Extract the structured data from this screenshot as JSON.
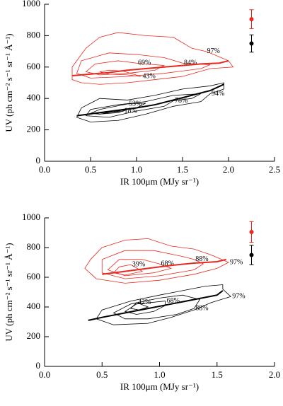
{
  "chart_data": [
    {
      "type": "contour",
      "xlabel": "IR 100μm (MJy sr⁻¹)",
      "ylabel": "UV (ph cm⁻² s⁻¹ sr⁻¹ Å⁻¹)",
      "xlim": [
        0,
        2.5
      ],
      "ylim": [
        0,
        1000
      ],
      "xticks": [
        {
          "value": 0,
          "label": "0.0"
        },
        0.5,
        {
          "value": 1,
          "label": "1.0"
        },
        1.5,
        {
          "value": 2,
          "label": "2.0"
        },
        2.5
      ],
      "yticks": [
        0,
        200,
        400,
        600,
        800,
        1000
      ],
      "groups": [
        {
          "color": "#e8281e",
          "levels": [
            {
              "label": "97%",
              "x": [
                1.75,
                1.6,
                1.4,
                1.1,
                0.8,
                0.6,
                0.45,
                0.3,
                0.3,
                0.4,
                0.6,
                0.9,
                1.2,
                1.5,
                1.8,
                2.05,
                2.0,
                1.8
              ],
              "y": [
                700,
                720,
                790,
                800,
                820,
                790,
                720,
                600,
                520,
                500,
                490,
                500,
                520,
                540,
                590,
                600,
                640,
                690
              ]
            },
            {
              "label": "84%",
              "x": [
                1.5,
                1.3,
                1.0,
                0.7,
                0.4,
                0.35,
                0.5,
                0.9,
                1.3,
                1.7,
                1.8
              ],
              "y": [
                625,
                660,
                680,
                690,
                640,
                560,
                530,
                540,
                560,
                590,
                615
              ]
            },
            {
              "label": "69%",
              "x": [
                1.0,
                0.8,
                0.55,
                0.45,
                0.6,
                0.9,
                1.2,
                1.3
              ],
              "y": [
                625,
                640,
                620,
                570,
                550,
                560,
                580,
                610
              ]
            },
            {
              "label": "43%",
              "x": [
                1.05,
                0.85,
                0.7,
                0.6,
                0.7,
                0.9
              ],
              "y": [
                540,
                575,
                580,
                570,
                555,
                550
              ]
            }
          ],
          "median": {
            "x": [
              0.3,
              0.5,
              0.7,
              0.9,
              1.1,
              1.3,
              1.5,
              1.7,
              1.9,
              2.0
            ],
            "y": [
              545,
              555,
              565,
              580,
              590,
              600,
              610,
              620,
              625,
              640
            ]
          },
          "point": {
            "x": 2.25,
            "y": 905,
            "err": 60
          }
        },
        {
          "color": "#000000",
          "levels": [
            {
              "label": "94%",
              "x": [
                1.8,
                1.7,
                1.4,
                1.1,
                0.8,
                0.5,
                0.35,
                0.4,
                0.6,
                0.9,
                1.2,
                1.5,
                1.8,
                1.95,
                1.95
              ],
              "y": [
                430,
                380,
                350,
                300,
                260,
                250,
                280,
                340,
                400,
                390,
                420,
                460,
                480,
                500,
                460
              ]
            },
            {
              "label": "78%",
              "x": [
                1.4,
                1.6,
                1.7,
                1.4,
                1.1,
                0.8,
                0.5,
                0.45,
                0.7,
                1.0,
                1.3
              ],
              "y": [
                385,
                400,
                430,
                420,
                380,
                360,
                330,
                290,
                280,
                320,
                350
              ]
            },
            {
              "label": "53%",
              "x": [
                0.9,
                1.1,
                1.0,
                0.8,
                0.6,
                0.5,
                0.6
              ],
              "y": [
                365,
                370,
                340,
                320,
                300,
                305,
                330
              ]
            },
            {
              "label": "18%",
              "x": [
                0.85,
                0.9,
                0.8,
                0.6,
                0.55
              ],
              "y": [
                318,
                330,
                310,
                300,
                305
              ]
            }
          ],
          "median": {
            "x": [
              0.35,
              0.6,
              0.8,
              1.0,
              1.2,
              1.4,
              1.6,
              1.8,
              1.95
            ],
            "y": [
              290,
              310,
              325,
              340,
              360,
              390,
              420,
              450,
              490
            ]
          },
          "point": {
            "x": 2.25,
            "y": 750,
            "err": 55
          }
        }
      ]
    },
    {
      "type": "contour",
      "xlabel": "IR 100μm (MJy sr⁻¹)",
      "ylabel": "UV (ph cm⁻² s⁻¹ sr⁻¹ Å⁻¹)",
      "xlim": [
        0,
        2
      ],
      "ylim": [
        0,
        1000
      ],
      "xticks": [
        {
          "value": 0,
          "label": "0.0"
        },
        0.5,
        {
          "value": 1,
          "label": "1.0"
        },
        1.5,
        {
          "value": 2,
          "label": "2.0"
        }
      ],
      "yticks": [
        0,
        200,
        400,
        600,
        800,
        1000
      ],
      "groups": [
        {
          "color": "#e8281e",
          "levels": [
            {
              "label": "97%",
              "x": [
                1.6,
                1.45,
                1.3,
                1.1,
                0.9,
                0.7,
                0.5,
                0.4,
                0.35,
                0.45,
                0.7,
                1.0,
                1.3,
                1.5
              ],
              "y": [
                700,
                750,
                790,
                810,
                860,
                850,
                800,
                720,
                660,
                590,
                560,
                580,
                620,
                660
              ]
            },
            {
              "label": "88%",
              "x": [
                1.3,
                1.2,
                0.95,
                0.7,
                0.5,
                0.5,
                0.7,
                1.0,
                1.3,
                1.38
              ],
              "y": [
                720,
                740,
                780,
                780,
                720,
                630,
                590,
                610,
                650,
                690
              ]
            },
            {
              "label": "68%",
              "x": [
                1.0,
                0.85,
                0.65,
                0.55,
                0.7,
                0.95,
                1.1
              ],
              "y": [
                690,
                720,
                720,
                650,
                610,
                630,
                660
              ]
            },
            {
              "label": "39%",
              "x": [
                0.75,
                0.65,
                0.6,
                0.7,
                0.85
              ],
              "y": [
                685,
                670,
                630,
                615,
                640
              ]
            }
          ],
          "median": {
            "x": [
              0.5,
              0.7,
              0.9,
              1.1,
              1.3,
              1.5,
              1.58
            ],
            "y": [
              620,
              640,
              660,
              680,
              695,
              705,
              720
            ]
          },
          "point": {
            "x": 1.8,
            "y": 905,
            "err": 70
          }
        },
        {
          "color": "#000000",
          "levels": [
            {
              "label": "97%",
              "x": [
                1.62,
                1.45,
                1.3,
                1.1,
                0.9,
                0.6,
                0.45,
                0.5,
                0.75,
                1.0,
                1.2,
                1.4,
                1.55,
                1.55
              ],
              "y": [
                470,
                430,
                380,
                330,
                290,
                280,
                320,
                380,
                440,
                480,
                510,
                540,
                550,
                520
              ]
            },
            {
              "label": "88%",
              "x": [
                1.3,
                1.15,
                0.9,
                0.7,
                0.6,
                0.75,
                1.0,
                1.2,
                1.35
              ],
              "y": [
                390,
                350,
                320,
                320,
                360,
                420,
                460,
                480,
                450
              ]
            },
            {
              "label": "68%",
              "x": [
                1.05,
                1.05,
                0.95,
                0.8,
                0.7,
                0.8
              ],
              "y": [
                440,
                410,
                370,
                350,
                370,
                420
              ]
            },
            {
              "label": "42%",
              "x": [
                0.8,
                0.9,
                0.82,
                0.75
              ],
              "y": [
                430,
                400,
                380,
                390
              ]
            }
          ],
          "median": {
            "x": [
              0.38,
              0.5,
              0.7,
              0.9,
              1.1,
              1.3,
              1.5,
              1.55
            ],
            "y": [
              310,
              330,
              360,
              390,
              420,
              450,
              480,
              510
            ]
          },
          "point": {
            "x": 1.8,
            "y": 750,
            "err": 65
          }
        }
      ]
    }
  ]
}
